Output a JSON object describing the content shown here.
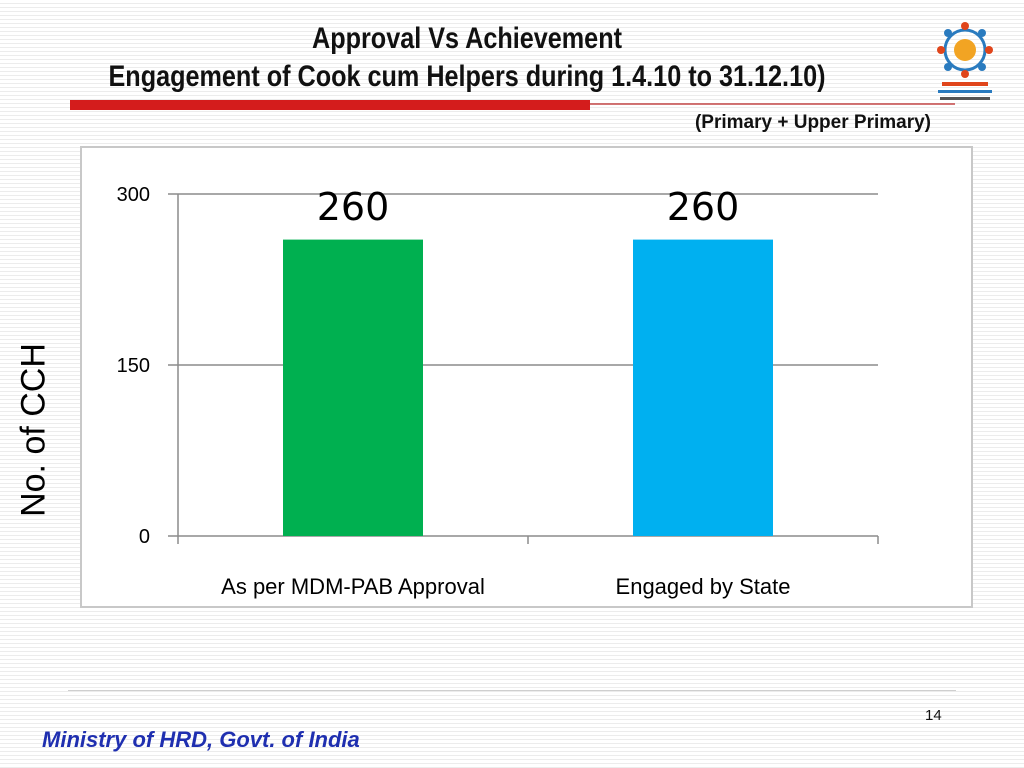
{
  "slide": {
    "title_line1": "Approval Vs Achievement",
    "title_line2": "Engagement of Cook cum Helpers during 1.4.10 to 31.12.10)",
    "subtitle": "(Primary + Upper Primary)",
    "page_number": "14",
    "footer_text": "Ministry of HRD, Govt. of India",
    "logo_icon": "mid-day-meal-scheme-logo",
    "colors": {
      "accent": "#d41c1c",
      "footer_text": "#1f2fb0"
    }
  },
  "chart_data": {
    "type": "bar",
    "categories": [
      "As per MDM-PAB Approval",
      "Engaged by State"
    ],
    "values": [
      260,
      260
    ],
    "data_labels": [
      "260",
      "260"
    ],
    "colors": [
      "#00b050",
      "#00b0f0"
    ],
    "ylabel": "No. of CCH",
    "ylim": [
      0,
      300
    ],
    "yticks": [
      0,
      150,
      300
    ],
    "ytick_labels": [
      "0",
      "150",
      "300"
    ],
    "grid": true,
    "legend": "none"
  }
}
